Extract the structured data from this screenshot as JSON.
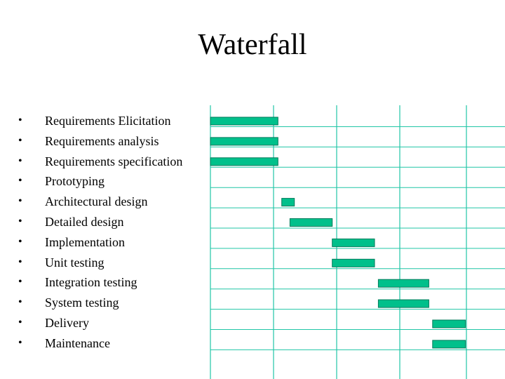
{
  "title": "Waterfall",
  "bullet_glyph": "•",
  "colors": {
    "bar_fill": "#00C08B",
    "bar_stroke": "#007A5A",
    "grid": "#21C6A6",
    "text": "#000000"
  },
  "tasks": [
    {
      "label": "Requirements Elicitation"
    },
    {
      "label": "Requirements analysis"
    },
    {
      "label": "Requirements specification"
    },
    {
      "label": "Prototyping"
    },
    {
      "label": "Architectural design"
    },
    {
      "label": "Detailed design"
    },
    {
      "label": "Implementation"
    },
    {
      "label": "Unit testing"
    },
    {
      "label": "Integration testing"
    },
    {
      "label": "System testing"
    },
    {
      "label": "Delivery"
    },
    {
      "label": "Maintenance"
    }
  ],
  "chart_data": {
    "type": "gantt",
    "grid": true,
    "tasks": [
      {
        "name": "Requirements Elicitation",
        "start": 0.0,
        "end": 1.07
      },
      {
        "name": "Requirements analysis",
        "start": 0.0,
        "end": 1.07
      },
      {
        "name": "Requirements specification",
        "start": 0.0,
        "end": 1.07
      },
      {
        "name": "Prototyping",
        "start": null,
        "end": null
      },
      {
        "name": "Architectural design",
        "start": 1.13,
        "end": 1.33
      },
      {
        "name": "Detailed design",
        "start": 1.26,
        "end": 1.93
      },
      {
        "name": "Implementation",
        "start": 1.93,
        "end": 2.6
      },
      {
        "name": "Unit testing",
        "start": 1.93,
        "end": 2.6
      },
      {
        "name": "Integration testing",
        "start": 2.66,
        "end": 3.46
      },
      {
        "name": "System testing",
        "start": 2.66,
        "end": 3.46
      },
      {
        "name": "Delivery",
        "start": 3.52,
        "end": 4.04
      },
      {
        "name": "Maintenance",
        "start": 3.52,
        "end": 4.04
      }
    ],
    "x_range": [
      0,
      4.04
    ]
  }
}
